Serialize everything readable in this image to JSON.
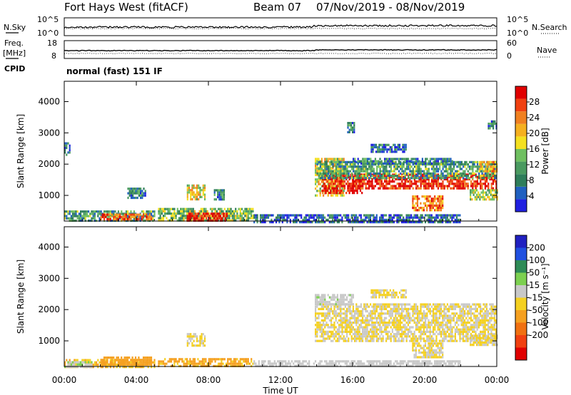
{
  "header": {
    "station": "Fort Hays West (fitACF)",
    "beam": "Beam 07",
    "date_range": "07/Nov/2019 - 08/Nov/2019"
  },
  "panels": {
    "nsky": {
      "left_label": "N.Sky",
      "left_ticks": [
        "10^5",
        "10^0"
      ],
      "right_label": "N.Search",
      "right_ticks": [
        "10^5",
        "10^0"
      ]
    },
    "freq": {
      "left_label_1": "Freq.",
      "left_label_2": "[MHz]",
      "left_ticks": [
        "18",
        "8"
      ],
      "right_label": "Nave",
      "right_ticks": [
        "60",
        "0"
      ]
    },
    "cpid": {
      "label": "CPID",
      "mode": "normal (fast) 151 IF"
    }
  },
  "chart_data": [
    {
      "type": "heatmap",
      "name": "power",
      "ylabel": "Slant Range [km]",
      "yticks": [
        1000,
        2000,
        3000,
        4000
      ],
      "ylim": [
        180,
        4650
      ],
      "xlim": [
        0,
        24
      ],
      "colorbar_label": "Power [dB]",
      "colorbar_ticks": [
        4,
        8,
        12,
        16,
        20,
        24,
        28
      ],
      "colorbar_colors": [
        "#2020e0",
        "#2060c0",
        "#2e7d5a",
        "#4a9a60",
        "#6fbf60",
        "#f4e020",
        "#f5b020",
        "#f08020",
        "#f04010",
        "#e00000"
      ],
      "regions": [
        {
          "t0": 0.0,
          "t1": 5.0,
          "r0": 200,
          "r1": 520,
          "level": 12
        },
        {
          "t0": 2.0,
          "t1": 4.8,
          "r0": 250,
          "r1": 420,
          "level": 24
        },
        {
          "t0": 5.2,
          "t1": 10.5,
          "r0": 200,
          "r1": 600,
          "level": 14
        },
        {
          "t0": 6.8,
          "t1": 9.0,
          "r0": 230,
          "r1": 450,
          "level": 26
        },
        {
          "t0": 6.8,
          "t1": 7.8,
          "r0": 900,
          "r1": 1350,
          "level": 18
        },
        {
          "t0": 3.5,
          "t1": 4.5,
          "r0": 950,
          "r1": 1250,
          "level": 10
        },
        {
          "t0": 8.3,
          "t1": 8.9,
          "r0": 900,
          "r1": 1200,
          "level": 10
        },
        {
          "t0": 0.0,
          "t1": 0.3,
          "r0": 2300,
          "r1": 2700,
          "level": 9
        },
        {
          "t0": 10.5,
          "t1": 22.0,
          "r0": 180,
          "r1": 400,
          "level": 8
        },
        {
          "t0": 13.9,
          "t1": 15.5,
          "r0": 1000,
          "r1": 2200,
          "level": 18
        },
        {
          "t0": 14.3,
          "t1": 16.5,
          "r0": 1100,
          "r1": 1700,
          "level": 27
        },
        {
          "t0": 16.0,
          "t1": 24.0,
          "r0": 1250,
          "r1": 1700,
          "level": 26
        },
        {
          "t0": 14.0,
          "t1": 24.0,
          "r0": 1550,
          "r1": 2100,
          "level": 12
        },
        {
          "t0": 16.0,
          "t1": 21.5,
          "r0": 2000,
          "r1": 2200,
          "level": 10
        },
        {
          "t0": 19.3,
          "t1": 21.0,
          "r0": 500,
          "r1": 1000,
          "level": 22
        },
        {
          "t0": 22.5,
          "t1": 24.0,
          "r0": 900,
          "r1": 1200,
          "level": 16
        },
        {
          "t0": 23.0,
          "t1": 24.0,
          "r0": 1800,
          "r1": 2100,
          "level": 20
        },
        {
          "t0": 17.0,
          "t1": 19.0,
          "r0": 2400,
          "r1": 2650,
          "level": 9
        },
        {
          "t0": 15.7,
          "t1": 16.1,
          "r0": 3000,
          "r1": 3350,
          "level": 10
        },
        {
          "t0": 23.5,
          "t1": 24.0,
          "r0": 3150,
          "r1": 3400,
          "level": 10
        }
      ]
    },
    {
      "type": "heatmap",
      "name": "velocity",
      "ylabel": "Slant Range [km]",
      "yticks": [
        1000,
        2000,
        3000,
        4000
      ],
      "ylim": [
        180,
        4650
      ],
      "xlim": [
        0,
        24
      ],
      "colorbar_label": "Velocity [m s⁻¹]",
      "colorbar_ticks": [
        200,
        100,
        50,
        15,
        -15,
        -50,
        -100,
        -200
      ],
      "colorbar_colors": [
        "#2020c0",
        "#2050e0",
        "#2e8b57",
        "#7cd050",
        "#c8c8c8",
        "#f4d020",
        "#f5a020",
        "#f07010",
        "#f04010",
        "#e00000"
      ],
      "regions": [
        {
          "t0": 0.0,
          "t1": 5.0,
          "r0": 200,
          "r1": 420,
          "level": -40
        },
        {
          "t0": 2.0,
          "t1": 4.8,
          "r0": 250,
          "r1": 500,
          "level": -60
        },
        {
          "t0": 5.2,
          "t1": 10.5,
          "r0": 200,
          "r1": 450,
          "level": -50
        },
        {
          "t0": 6.8,
          "t1": 7.8,
          "r0": 850,
          "r1": 1250,
          "level": 0
        },
        {
          "t0": 0.0,
          "t1": 1.5,
          "r0": 200,
          "r1": 350,
          "level": 30
        },
        {
          "t0": 10.5,
          "t1": 22.0,
          "r0": 180,
          "r1": 380,
          "level": 20
        },
        {
          "t0": 13.9,
          "t1": 24.0,
          "r0": 1000,
          "r1": 2200,
          "level": 0
        },
        {
          "t0": 13.9,
          "t1": 16.0,
          "r0": 2200,
          "r1": 2500,
          "level": 25
        },
        {
          "t0": 19.3,
          "t1": 21.0,
          "r0": 500,
          "r1": 950,
          "level": 0
        },
        {
          "t0": 22.5,
          "t1": 24.0,
          "r0": 900,
          "r1": 1200,
          "level": 0
        },
        {
          "t0": 17.0,
          "t1": 19.0,
          "r0": 2400,
          "r1": 2650,
          "level": 0
        }
      ]
    }
  ],
  "x_axis": {
    "label": "Time UT",
    "tick_labels": [
      "00:00",
      "04:00",
      "08:00",
      "12:00",
      "16:00",
      "20:00",
      "00:00"
    ],
    "tick_hours": [
      0,
      4,
      8,
      12,
      16,
      20,
      24
    ]
  }
}
